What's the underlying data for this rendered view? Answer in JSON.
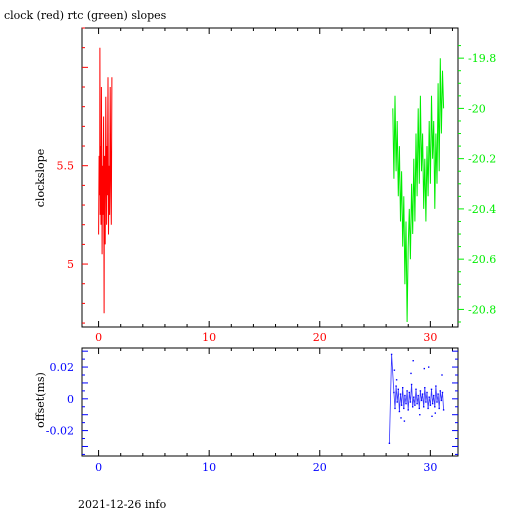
{
  "title": "clock (red) rtc (green) slopes",
  "footer": "2021-12-26 info",
  "colors": {
    "clock": "#ff0000",
    "rtc": "#00ee00",
    "offset": "#0000ff",
    "axis": "#000000"
  },
  "chart_data": [
    {
      "type": "line",
      "title": "clock (red) rtc (green) slopes",
      "xlabel": "",
      "ylabel": "clockslope",
      "xlim": [
        -1.5,
        32.5
      ],
      "ylim": [
        4.68,
        6.2
      ],
      "y2lim": [
        -20.87,
        -19.68
      ],
      "x_ticks": [
        0,
        10,
        20,
        30
      ],
      "y_ticks": [
        5,
        5.5
      ],
      "y2_ticks": [
        -19.8,
        -20,
        -20.2,
        -20.4,
        -20.6,
        -20.8
      ],
      "x_tick_labels": [
        "0",
        "10",
        "20",
        "30"
      ],
      "y_tick_labels": [
        "5",
        "5.5"
      ],
      "y2_tick_labels": [
        "-19.8",
        "-20",
        "-20.2",
        "-20.4",
        "-20.6",
        "-20.8"
      ],
      "series": [
        {
          "name": "clock",
          "axis": "left",
          "x": [
            0.0,
            0.05,
            0.1,
            0.12,
            0.15,
            0.2,
            0.22,
            0.25,
            0.3,
            0.32,
            0.35,
            0.4,
            0.45,
            0.5,
            0.52,
            0.55,
            0.6,
            0.65,
            0.7,
            0.72,
            0.75,
            0.8,
            0.85,
            0.9,
            0.95,
            1.0,
            1.05,
            1.1,
            1.15,
            1.2
          ],
          "y": [
            5.15,
            5.55,
            5.35,
            6.1,
            5.25,
            5.6,
            5.2,
            5.9,
            5.4,
            5.05,
            5.5,
            5.25,
            5.75,
            4.75,
            5.3,
            5.55,
            5.1,
            5.85,
            5.45,
            5.2,
            5.6,
            5.35,
            5.95,
            5.15,
            5.5,
            5.25,
            5.9,
            5.4,
            5.2,
            5.95
          ]
        },
        {
          "name": "rtc",
          "axis": "right",
          "x": [
            26.6,
            26.7,
            26.8,
            26.9,
            27.0,
            27.1,
            27.2,
            27.3,
            27.4,
            27.5,
            27.6,
            27.7,
            27.8,
            27.9,
            28.0,
            28.1,
            28.2,
            28.3,
            28.4,
            28.5,
            28.6,
            28.7,
            28.8,
            28.9,
            29.0,
            29.1,
            29.2,
            29.3,
            29.4,
            29.5,
            29.6,
            29.7,
            29.8,
            29.9,
            30.0,
            30.1,
            30.2,
            30.3,
            30.4,
            30.5,
            30.6,
            30.7,
            30.8,
            30.9,
            31.0,
            31.1,
            31.2
          ],
          "y": [
            -20.0,
            -20.28,
            -19.95,
            -20.25,
            -20.05,
            -20.35,
            -20.15,
            -20.45,
            -20.25,
            -20.55,
            -20.35,
            -20.7,
            -20.45,
            -20.85,
            -20.55,
            -20.4,
            -20.6,
            -20.3,
            -20.5,
            -20.2,
            -20.45,
            -20.1,
            -20.35,
            -20.0,
            -20.3,
            -19.95,
            -20.25,
            -20.1,
            -20.4,
            -20.2,
            -20.45,
            -20.15,
            -20.35,
            -20.05,
            -20.3,
            -19.95,
            -20.2,
            -20.05,
            -20.4,
            -20.1,
            -20.3,
            -19.9,
            -20.25,
            -19.8,
            -20.1,
            -19.85,
            -20.0
          ]
        }
      ]
    },
    {
      "type": "scatter",
      "title": "",
      "xlabel": "",
      "ylabel": "offset(ms)",
      "xlim": [
        -1.5,
        32.5
      ],
      "ylim": [
        -0.036,
        0.032
      ],
      "x_ticks": [
        0,
        10,
        20,
        30
      ],
      "y_ticks": [
        0.02,
        0,
        -0.02
      ],
      "x_tick_labels": [
        "0",
        "10",
        "20",
        "30"
      ],
      "y_tick_labels": [
        "0.02",
        "0",
        "-0.02"
      ],
      "series": [
        {
          "name": "offset",
          "x": [
            26.3,
            26.5,
            26.7,
            26.8,
            26.9,
            27.0,
            27.1,
            27.2,
            27.3,
            27.4,
            27.5,
            27.6,
            27.7,
            27.8,
            27.9,
            28.0,
            28.1,
            28.2,
            28.3,
            28.4,
            28.5,
            28.6,
            28.7,
            28.8,
            28.9,
            29.0,
            29.1,
            29.2,
            29.3,
            29.4,
            29.5,
            29.6,
            29.7,
            29.8,
            29.9,
            30.0,
            30.1,
            30.2,
            30.3,
            30.4,
            30.5,
            30.6,
            30.7,
            30.8,
            30.9,
            31.0,
            31.1,
            31.2,
            26.75,
            27.35,
            28.45,
            29.05,
            29.85,
            30.45,
            31.05,
            26.95,
            27.65,
            28.25,
            29.45,
            30.15
          ],
          "y": [
            -0.028,
            0.028,
            0.004,
            -0.006,
            0.008,
            -0.002,
            0.006,
            -0.008,
            0.003,
            -0.004,
            0.007,
            -0.006,
            0.002,
            -0.003,
            0.005,
            -0.007,
            0.004,
            -0.002,
            0.009,
            -0.005,
            0.001,
            -0.004,
            0.006,
            -0.003,
            0.002,
            -0.006,
            0.005,
            -0.001,
            0.003,
            -0.005,
            0.007,
            -0.002,
            0.004,
            -0.006,
            0.001,
            -0.004,
            0.006,
            -0.003,
            0.002,
            -0.005,
            0.008,
            -0.002,
            0.003,
            -0.006,
            0.005,
            -0.001,
            0.004,
            -0.007,
            0.018,
            -0.012,
            0.024,
            -0.01,
            0.02,
            -0.009,
            0.015,
            0.012,
            -0.014,
            0.016,
            0.019,
            -0.011
          ]
        }
      ]
    }
  ]
}
